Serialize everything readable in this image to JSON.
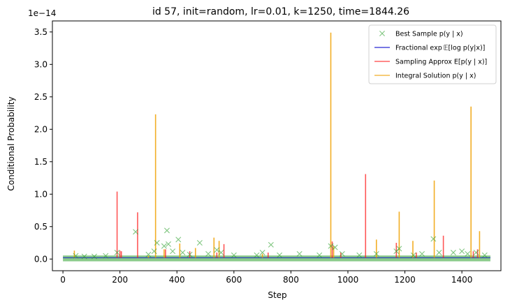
{
  "chart_data": {
    "type": "line",
    "title": "id 57, init=random, lr=0.01, k=1250, time=1844.26",
    "xlabel": "Step",
    "ylabel": "Conditional Probability",
    "y_scale_label": "1e−14",
    "xlim": [
      -37,
      1537
    ],
    "ylim": [
      -0.18,
      3.67
    ],
    "x_ticks": [
      0,
      200,
      400,
      600,
      800,
      1000,
      1200,
      1400
    ],
    "x_tick_labels": [
      "0",
      "200",
      "400",
      "600",
      "800",
      "1000",
      "1200",
      "1400"
    ],
    "y_ticks": [
      0.0,
      0.5,
      1.0,
      1.5,
      2.0,
      2.5,
      3.0,
      3.5
    ],
    "y_tick_labels": [
      "0.0",
      "0.5",
      "1.0",
      "1.5",
      "2.0",
      "2.5",
      "3.0",
      "3.5"
    ],
    "grid": false,
    "legend_position": "top-right",
    "baseline_y": 0.02,
    "series": [
      {
        "name": "Best Sample p(y | x)",
        "kind": "scatter",
        "color": "#2ca02c",
        "marker": "x",
        "points": [
          [
            45,
            0.05
          ],
          [
            75,
            0.04
          ],
          [
            110,
            0.04
          ],
          [
            150,
            0.05
          ],
          [
            190,
            0.1
          ],
          [
            255,
            0.42
          ],
          [
            300,
            0.07
          ],
          [
            320,
            0.12
          ],
          [
            330,
            0.25
          ],
          [
            355,
            0.2
          ],
          [
            365,
            0.44
          ],
          [
            370,
            0.23
          ],
          [
            385,
            0.12
          ],
          [
            405,
            0.3
          ],
          [
            420,
            0.1
          ],
          [
            445,
            0.07
          ],
          [
            480,
            0.25
          ],
          [
            510,
            0.08
          ],
          [
            540,
            0.14
          ],
          [
            555,
            0.1
          ],
          [
            600,
            0.06
          ],
          [
            680,
            0.06
          ],
          [
            700,
            0.1
          ],
          [
            730,
            0.22
          ],
          [
            760,
            0.06
          ],
          [
            830,
            0.08
          ],
          [
            900,
            0.06
          ],
          [
            940,
            0.2
          ],
          [
            955,
            0.18
          ],
          [
            980,
            0.08
          ],
          [
            1040,
            0.06
          ],
          [
            1100,
            0.08
          ],
          [
            1170,
            0.12
          ],
          [
            1180,
            0.16
          ],
          [
            1230,
            0.06
          ],
          [
            1260,
            0.08
          ],
          [
            1300,
            0.31
          ],
          [
            1320,
            0.1
          ],
          [
            1370,
            0.1
          ],
          [
            1400,
            0.12
          ],
          [
            1420,
            0.08
          ],
          [
            1450,
            0.1
          ],
          [
            1480,
            0.06
          ]
        ]
      },
      {
        "name": "Fractional exp 𝔼[log p(y|x)]",
        "kind": "line",
        "color": "#0000cc",
        "points": [
          [
            0,
            0.02
          ],
          [
            1500,
            0.02
          ]
        ]
      },
      {
        "name": "Sampling Approx E[p(y | x)]",
        "kind": "spikes",
        "color": "#ff2020",
        "points": [
          [
            190,
            1.04
          ],
          [
            200,
            0.13
          ],
          [
            205,
            0.12
          ],
          [
            262,
            0.72
          ],
          [
            360,
            0.15
          ],
          [
            445,
            0.12
          ],
          [
            540,
            0.1
          ],
          [
            565,
            0.23
          ],
          [
            720,
            0.1
          ],
          [
            945,
            0.27
          ],
          [
            975,
            0.1
          ],
          [
            1062,
            1.31
          ],
          [
            1170,
            0.25
          ],
          [
            1240,
            0.1
          ],
          [
            1335,
            0.36
          ],
          [
            1440,
            0.12
          ],
          [
            1455,
            0.15
          ]
        ]
      },
      {
        "name": "Integral Solution p(y | x)",
        "kind": "spikes",
        "color": "#f0a000",
        "points": [
          [
            40,
            0.13
          ],
          [
            300,
            0.05
          ],
          [
            325,
            2.23
          ],
          [
            355,
            0.15
          ],
          [
            410,
            0.24
          ],
          [
            465,
            0.17
          ],
          [
            530,
            0.33
          ],
          [
            548,
            0.28
          ],
          [
            700,
            0.08
          ],
          [
            940,
            3.49
          ],
          [
            950,
            0.2
          ],
          [
            1100,
            0.3
          ],
          [
            1180,
            0.73
          ],
          [
            1228,
            0.28
          ],
          [
            1303,
            1.21
          ],
          [
            1432,
            2.35
          ],
          [
            1462,
            0.43
          ]
        ]
      }
    ]
  }
}
